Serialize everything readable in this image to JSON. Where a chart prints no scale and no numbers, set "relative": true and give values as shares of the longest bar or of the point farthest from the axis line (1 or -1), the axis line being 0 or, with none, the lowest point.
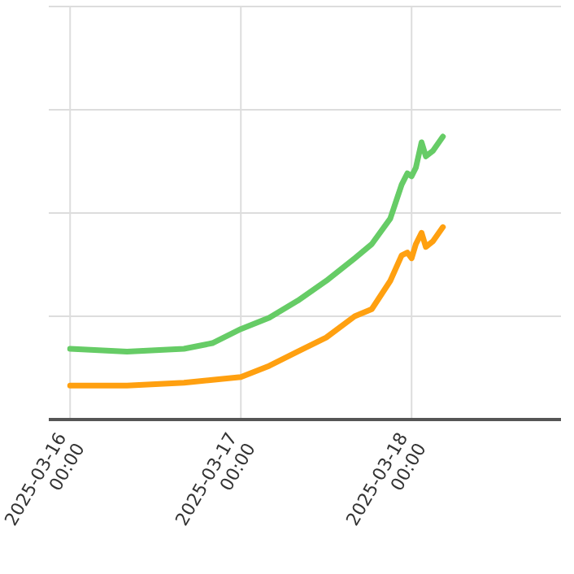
{
  "chart_data": {
    "type": "line",
    "relative": true,
    "grid": true,
    "marker": "none",
    "line_style": "solid",
    "x": [
      "2025-03-16T00:00",
      "2025-03-16T08:00",
      "2025-03-16T16:00",
      "2025-03-16T20:00",
      "2025-03-17T00:00",
      "2025-03-17T04:00",
      "2025-03-17T08:00",
      "2025-03-17T12:00",
      "2025-03-17T16:00",
      "2025-03-17T18:24",
      "2025-03-17T21:00",
      "2025-03-17T22:36",
      "2025-03-17T23:24",
      "2025-03-18T00:00",
      "2025-03-18T00:36",
      "2025-03-18T01:24",
      "2025-03-18T02:00",
      "2025-03-18T03:00",
      "2025-03-18T04:24"
    ],
    "xlim": [
      "2025-03-15T21:00",
      "2025-03-18T21:00"
    ],
    "xticks": [
      {
        "value": "2025-03-16T00:00",
        "label": "2025-03-16 00:00"
      },
      {
        "value": "2025-03-17T00:00",
        "label": "2025-03-17 00:00"
      },
      {
        "value": "2025-03-18T00:00",
        "label": "2025-03-18 00:00"
      }
    ],
    "series": [
      {
        "color": "#66cc66",
        "values": [
          0.25,
          0.24,
          0.25,
          0.27,
          0.32,
          0.36,
          0.42,
          0.49,
          0.57,
          0.62,
          0.71,
          0.83,
          0.87,
          0.86,
          0.89,
          0.98,
          0.93,
          0.95,
          1.0
        ]
      },
      {
        "color": "#ffa010",
        "values": [
          0.12,
          0.12,
          0.13,
          0.14,
          0.15,
          0.19,
          0.24,
          0.29,
          0.365,
          0.39,
          0.49,
          0.58,
          0.59,
          0.57,
          0.62,
          0.66,
          0.61,
          0.63,
          0.68
        ]
      }
    ]
  }
}
